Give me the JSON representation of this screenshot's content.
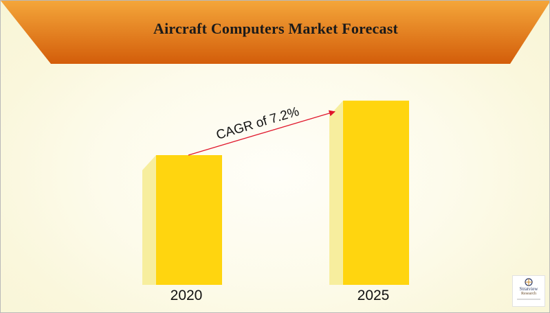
{
  "header": {
    "title": "Aircraft Computers Market Forecast"
  },
  "colors": {
    "banner_top": "#f4a63a",
    "banner_bottom": "#d35d0a",
    "bar_front": "#ffd50f",
    "bar_side": "#f7ee9e",
    "arrow": "#e0162b",
    "text": "#111111"
  },
  "chart_data": {
    "type": "bar",
    "categories": [
      "2020",
      "2025"
    ],
    "values": [
      1.0,
      1.42
    ],
    "annotation": {
      "text": "CAGR of 7.2%",
      "from": "2020",
      "to": "2025",
      "style": "arrow"
    },
    "axes_visible": false,
    "grid": false,
    "legend": "none"
  },
  "logo": {
    "line1": "Stratview",
    "line2": "Research",
    "icon": "stratview-logo-icon"
  }
}
